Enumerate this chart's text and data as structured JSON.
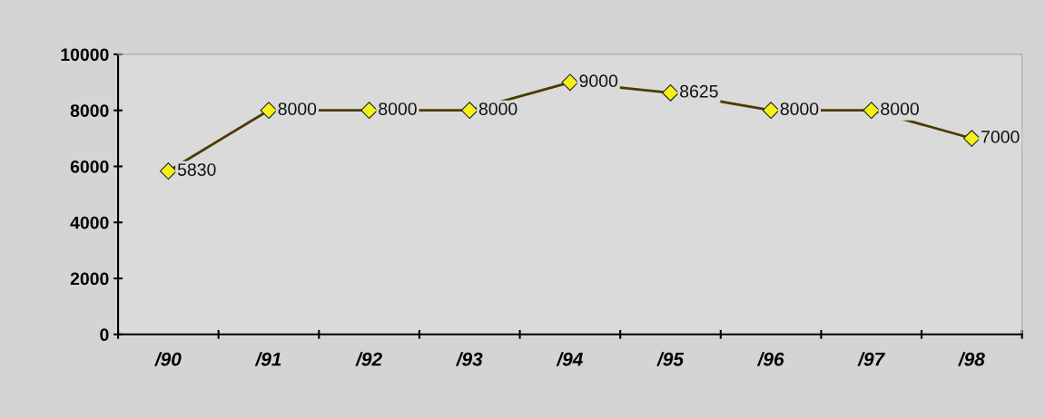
{
  "chart_data": {
    "type": "line",
    "categories": [
      "/90",
      "/91",
      "/92",
      "/93",
      "/94",
      "/95",
      "/96",
      "/97",
      "/98"
    ],
    "series": [
      {
        "color": "#4a3c00",
        "values": [
          5830,
          8000,
          8000,
          8000,
          9000,
          8625,
          8000,
          8000,
          7000
        ]
      }
    ],
    "marker": "diamond",
    "data_labels": true,
    "ylim": [
      0,
      10000
    ],
    "yticks": [
      0,
      2000,
      4000,
      6000,
      8000,
      10000
    ],
    "grid": false,
    "legend": false
  }
}
